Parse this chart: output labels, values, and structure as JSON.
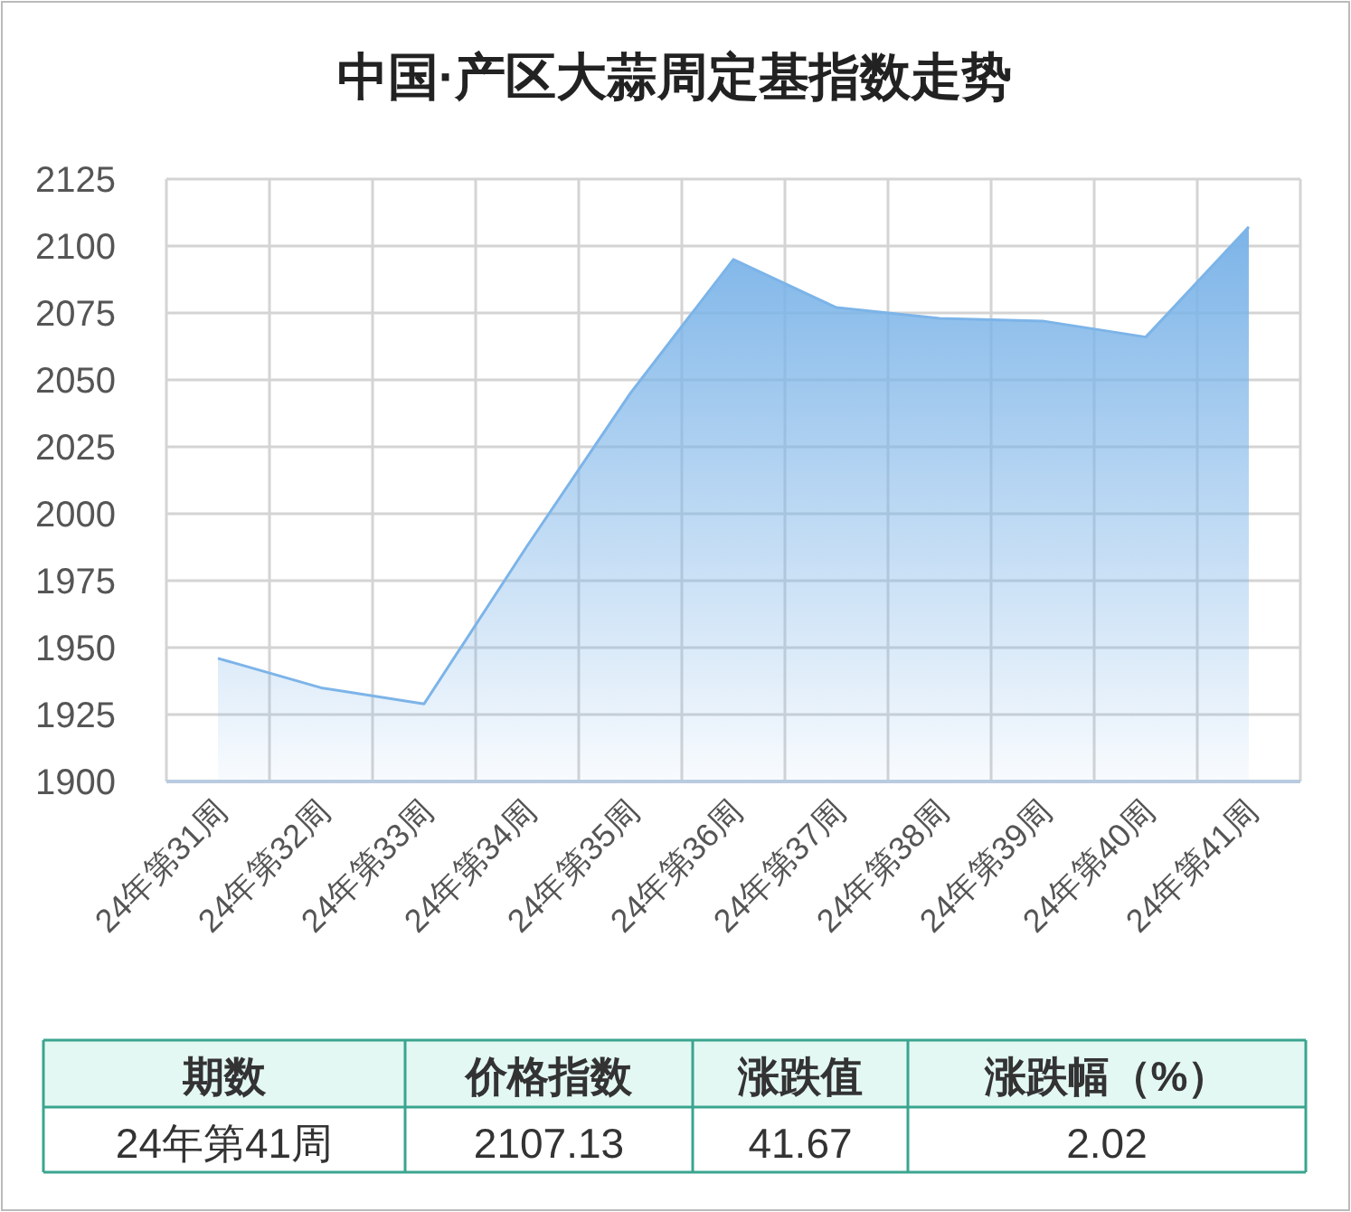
{
  "chart_data": {
    "type": "area",
    "title": "中国·产区大蒜周定基指数走势",
    "categories": [
      "24年第31周",
      "24年第32周",
      "24年第33周",
      "24年第34周",
      "24年第35周",
      "24年第36周",
      "24年第37周",
      "24年第38周",
      "24年第39周",
      "24年第40周",
      "24年第41周"
    ],
    "values": [
      1946,
      1935,
      1929,
      1988,
      2045,
      2095,
      2077,
      2073,
      2072,
      2066,
      2107.13
    ],
    "color": "#7cb4e8",
    "ylim": [
      1900,
      2125
    ],
    "yticks": [
      1900,
      1925,
      1950,
      1975,
      2000,
      2025,
      2050,
      2075,
      2100,
      2125
    ],
    "grid": true,
    "annotations": [
      "期数",
      "价格指数",
      "涨跌值",
      "涨跌幅（%）",
      "24年第41周",
      "2107.13",
      "41.67",
      "2.02"
    ]
  }
}
